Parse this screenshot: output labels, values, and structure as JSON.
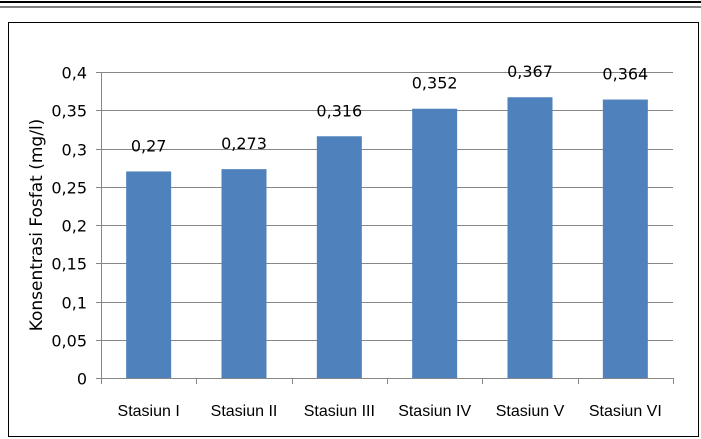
{
  "chart_data": {
    "type": "bar",
    "title": "",
    "xlabel": "",
    "ylabel": "Konsentrasi Fosfat (mg/l)",
    "categories": [
      "Stasiun I",
      "Stasiun II",
      "Stasiun III",
      "Stasiun IV",
      "Stasiun V",
      "Stasiun VI"
    ],
    "values": [
      0.27,
      0.273,
      0.316,
      0.352,
      0.367,
      0.364
    ],
    "value_labels": [
      "0,27",
      "0,273",
      "0,316",
      "0,352",
      "0,367",
      "0,364"
    ],
    "ylim": [
      0,
      0.4
    ],
    "yticks": [
      0,
      0.05,
      0.1,
      0.15,
      0.2,
      0.25,
      0.3,
      0.35,
      0.4
    ],
    "ytick_labels": [
      "0",
      "0,05",
      "0,1",
      "0,15",
      "0,2",
      "0,25",
      "0,3",
      "0,35",
      "0,4"
    ],
    "grid": true,
    "legend": "none",
    "colors": {
      "bar": "#4F81BD",
      "grid": "#868686",
      "axis": "#868686",
      "border": "#000000"
    }
  }
}
